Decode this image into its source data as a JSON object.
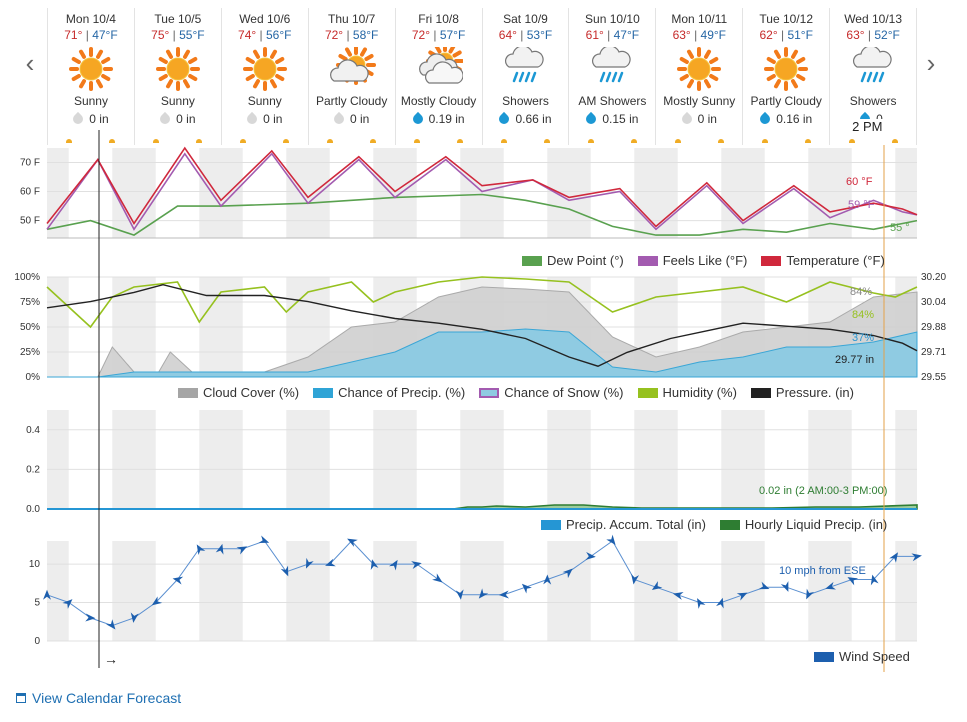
{
  "nav": {
    "prev_icon": "chevron-left-icon",
    "next_icon": "chevron-right-icon"
  },
  "days": [
    {
      "name": "Mon 10/4",
      "hi": "71°",
      "lo": "47°F",
      "icon": "sunny",
      "cond": "Sunny",
      "precip": "0 in",
      "wet": false
    },
    {
      "name": "Tue 10/5",
      "hi": "75°",
      "lo": "55°F",
      "icon": "sunny",
      "cond": "Sunny",
      "precip": "0 in",
      "wet": false
    },
    {
      "name": "Wed 10/6",
      "hi": "74°",
      "lo": "56°F",
      "icon": "sunny",
      "cond": "Sunny",
      "precip": "0 in",
      "wet": false
    },
    {
      "name": "Thu 10/7",
      "hi": "72°",
      "lo": "58°F",
      "icon": "partly-cloudy",
      "cond": "Partly Cloudy",
      "precip": "0 in",
      "wet": false
    },
    {
      "name": "Fri 10/8",
      "hi": "72°",
      "lo": "57°F",
      "icon": "mostly-cloudy",
      "cond": "Mostly Cloudy",
      "precip": "0.19 in",
      "wet": true
    },
    {
      "name": "Sat 10/9",
      "hi": "64°",
      "lo": "53°F",
      "icon": "showers",
      "cond": "Showers",
      "precip": "0.66 in",
      "wet": true
    },
    {
      "name": "Sun 10/10",
      "hi": "61°",
      "lo": "47°F",
      "icon": "showers",
      "cond": "AM Showers",
      "precip": "0.15 in",
      "wet": true
    },
    {
      "name": "Mon 10/11",
      "hi": "63°",
      "lo": "49°F",
      "icon": "sunny",
      "cond": "Mostly Sunny",
      "precip": "0 in",
      "wet": false
    },
    {
      "name": "Tue 10/12",
      "hi": "62°",
      "lo": "51°F",
      "icon": "sunny",
      "cond": "Partly Cloudy",
      "precip": "0.16 in",
      "wet": true
    },
    {
      "name": "Wed 10/13",
      "hi": "63°",
      "lo": "52°F",
      "icon": "showers",
      "cond": "Showers",
      "precip": "0.",
      "wet": true
    }
  ],
  "hover_time": "2 PM",
  "colors": {
    "temperature": "#d0283c",
    "feels_like": "#a35bb0",
    "dew_point": "#59a14f",
    "cloud": "#bdbdbd",
    "precip_chance": "#8fcbe2",
    "humidity": "#96c11f",
    "pressure": "#222222",
    "hourly_precip": "#2e7d32",
    "accum": "#2596d4",
    "wind": "#1d5fae",
    "hi": "#c62a2a",
    "lo": "#2566a5"
  },
  "chart_data": [
    {
      "type": "line",
      "title": "",
      "yticks": [
        "70 F",
        "60 F",
        "50 F"
      ],
      "ylim": [
        44,
        75
      ],
      "x_unit": "hours from Mon 10/4 00:00",
      "series": [
        {
          "name": "Dew Point (°)",
          "points": [
            [
              0,
              47
            ],
            [
              12,
              50
            ],
            [
              24,
              45
            ],
            [
              36,
              55
            ],
            [
              48,
              55
            ],
            [
              72,
              56
            ],
            [
              96,
              58
            ],
            [
              120,
              59
            ],
            [
              132,
              57
            ],
            [
              144,
              54
            ],
            [
              156,
              48
            ],
            [
              168,
              45
            ],
            [
              180,
              45
            ],
            [
              192,
              47
            ],
            [
              204,
              46
            ],
            [
              216,
              49
            ],
            [
              228,
              47
            ],
            [
              240,
              50
            ]
          ]
        },
        {
          "name": "Feels Like (°F)",
          "points": [
            [
              0,
              47
            ],
            [
              14,
              71
            ],
            [
              24,
              47
            ],
            [
              38,
              73
            ],
            [
              48,
              55
            ],
            [
              62,
              73
            ],
            [
              72,
              56
            ],
            [
              86,
              71
            ],
            [
              96,
              58
            ],
            [
              110,
              71
            ],
            [
              120,
              60
            ],
            [
              134,
              64
            ],
            [
              144,
              57
            ],
            [
              158,
              60
            ],
            [
              168,
              47
            ],
            [
              182,
              62
            ],
            [
              192,
              49
            ],
            [
              206,
              61
            ],
            [
              216,
              51
            ],
            [
              228,
              57
            ],
            [
              236,
              53
            ],
            [
              240,
              52
            ]
          ]
        },
        {
          "name": "Temperature (°F)",
          "points": [
            [
              0,
              49
            ],
            [
              14,
              71
            ],
            [
              24,
              49
            ],
            [
              38,
              75
            ],
            [
              48,
              57
            ],
            [
              62,
              74
            ],
            [
              72,
              58
            ],
            [
              86,
              72
            ],
            [
              96,
              60
            ],
            [
              110,
              72
            ],
            [
              120,
              62
            ],
            [
              134,
              64
            ],
            [
              144,
              58
            ],
            [
              158,
              61
            ],
            [
              168,
              48
            ],
            [
              182,
              63
            ],
            [
              192,
              50
            ],
            [
              206,
              62
            ],
            [
              216,
              53
            ],
            [
              228,
              56
            ],
            [
              236,
              54
            ],
            [
              240,
              52
            ]
          ]
        }
      ],
      "annotations": [
        "60 °F",
        "59 °F",
        "55 °"
      ]
    },
    {
      "type": "area",
      "yticks_left": [
        "100%",
        "75%",
        "50%",
        "25%",
        "0%"
      ],
      "yticks_right": [
        "30.20",
        "30.04",
        "29.88",
        "29.71",
        "29.55"
      ],
      "x_unit": "hours from Mon 10/4 00:00",
      "series": [
        {
          "name": "Cloud Cover (%)",
          "points": [
            [
              0,
              0
            ],
            [
              14,
              0
            ],
            [
              18,
              30
            ],
            [
              24,
              5
            ],
            [
              30,
              0
            ],
            [
              34,
              25
            ],
            [
              40,
              5
            ],
            [
              48,
              0
            ],
            [
              60,
              5
            ],
            [
              72,
              20
            ],
            [
              84,
              50
            ],
            [
              96,
              55
            ],
            [
              108,
              80
            ],
            [
              120,
              90
            ],
            [
              132,
              88
            ],
            [
              144,
              85
            ],
            [
              156,
              40
            ],
            [
              168,
              20
            ],
            [
              180,
              30
            ],
            [
              192,
              45
            ],
            [
              204,
              50
            ],
            [
              216,
              55
            ],
            [
              228,
              80
            ],
            [
              240,
              85
            ]
          ]
        },
        {
          "name": "Chance of Precip. (%)",
          "points": [
            [
              0,
              0
            ],
            [
              14,
              0
            ],
            [
              24,
              5
            ],
            [
              72,
              5
            ],
            [
              96,
              25
            ],
            [
              108,
              45
            ],
            [
              120,
              45
            ],
            [
              132,
              48
            ],
            [
              144,
              45
            ],
            [
              156,
              10
            ],
            [
              168,
              5
            ],
            [
              180,
              15
            ],
            [
              192,
              20
            ],
            [
              204,
              30
            ],
            [
              216,
              30
            ],
            [
              228,
              35
            ],
            [
              240,
              45
            ]
          ]
        },
        {
          "name": "Chance of Snow (%)",
          "points": [
            [
              0,
              0
            ],
            [
              240,
              0
            ]
          ]
        },
        {
          "name": "Humidity (%)",
          "points": [
            [
              0,
              90
            ],
            [
              12,
              50
            ],
            [
              18,
              80
            ],
            [
              24,
              90
            ],
            [
              36,
              95
            ],
            [
              42,
              55
            ],
            [
              48,
              85
            ],
            [
              60,
              90
            ],
            [
              66,
              65
            ],
            [
              72,
              85
            ],
            [
              84,
              95
            ],
            [
              90,
              75
            ],
            [
              96,
              85
            ],
            [
              108,
              95
            ],
            [
              120,
              100
            ],
            [
              132,
              98
            ],
            [
              144,
              95
            ],
            [
              156,
              65
            ],
            [
              168,
              80
            ],
            [
              180,
              85
            ],
            [
              192,
              90
            ],
            [
              204,
              75
            ],
            [
              216,
              95
            ],
            [
              228,
              84
            ],
            [
              234,
              80
            ],
            [
              240,
              90
            ]
          ]
        },
        {
          "name": "Pressure. (in)",
          "points": [
            [
              0,
              30.0
            ],
            [
              12,
              30.04
            ],
            [
              24,
              30.1
            ],
            [
              32,
              30.15
            ],
            [
              44,
              30.08
            ],
            [
              60,
              30.08
            ],
            [
              72,
              30.04
            ],
            [
              84,
              29.98
            ],
            [
              96,
              29.93
            ],
            [
              108,
              29.9
            ],
            [
              120,
              29.86
            ],
            [
              132,
              29.8
            ],
            [
              144,
              29.68
            ],
            [
              152,
              29.62
            ],
            [
              160,
              29.71
            ],
            [
              172,
              29.8
            ],
            [
              184,
              29.86
            ],
            [
              192,
              29.9
            ],
            [
              204,
              29.88
            ],
            [
              216,
              29.86
            ],
            [
              228,
              29.82
            ],
            [
              236,
              29.77
            ],
            [
              240,
              29.72
            ]
          ]
        }
      ],
      "annotations": [
        "84%",
        "84%",
        "37%",
        "29.77 in"
      ]
    },
    {
      "type": "area",
      "yticks": [
        "0.4",
        "0.2",
        "0.0"
      ],
      "ylim": [
        0,
        0.5
      ],
      "x_unit": "hours from Mon 10/4 00:00",
      "series": [
        {
          "name": "Precip. Accum. Total (in)",
          "points": [
            [
              0,
              0
            ],
            [
              240,
              0
            ]
          ]
        },
        {
          "name": "Hourly Liquid Precip. (in)",
          "points": [
            [
              0,
              0
            ],
            [
              112,
              0
            ],
            [
              116,
              0.01
            ],
            [
              120,
              0.01
            ],
            [
              124,
              0.015
            ],
            [
              132,
              0.01
            ],
            [
              140,
              0.02
            ],
            [
              148,
              0.02
            ],
            [
              156,
              0.01
            ],
            [
              164,
              0.005
            ],
            [
              200,
              0.005
            ],
            [
              212,
              0.01
            ],
            [
              224,
              0.01
            ],
            [
              240,
              0.02
            ]
          ]
        }
      ],
      "annotations": [
        "0.02 in (2 AM:00-3 PM:00)"
      ]
    },
    {
      "type": "line",
      "yticks": [
        "10",
        "5",
        "0"
      ],
      "ylim": [
        0,
        13
      ],
      "x_unit": "hours from Mon 10/4 00:00",
      "series": [
        {
          "name": "Wind Speed",
          "points": [
            [
              0,
              6
            ],
            [
              6,
              5
            ],
            [
              12,
              3
            ],
            [
              18,
              2
            ],
            [
              24,
              3
            ],
            [
              30,
              5
            ],
            [
              36,
              8
            ],
            [
              42,
              12
            ],
            [
              48,
              12
            ],
            [
              54,
              12
            ],
            [
              60,
              13
            ],
            [
              66,
              9
            ],
            [
              72,
              10
            ],
            [
              78,
              10
            ],
            [
              84,
              13
            ],
            [
              90,
              10
            ],
            [
              96,
              10
            ],
            [
              102,
              10
            ],
            [
              108,
              8
            ],
            [
              114,
              6
            ],
            [
              120,
              6
            ],
            [
              126,
              6
            ],
            [
              132,
              7
            ],
            [
              138,
              8
            ],
            [
              144,
              9
            ],
            [
              150,
              11
            ],
            [
              156,
              13
            ],
            [
              162,
              8
            ],
            [
              168,
              7
            ],
            [
              174,
              6
            ],
            [
              180,
              5
            ],
            [
              186,
              5
            ],
            [
              192,
              6
            ],
            [
              198,
              7
            ],
            [
              204,
              7
            ],
            [
              210,
              6
            ],
            [
              216,
              7
            ],
            [
              222,
              8
            ],
            [
              228,
              8
            ],
            [
              234,
              11
            ],
            [
              240,
              11
            ]
          ]
        }
      ],
      "annotations": [
        "10 mph from ESE"
      ]
    }
  ],
  "legends": {
    "temp": [
      "Dew Point (°)",
      "Feels Like (°F)",
      "Temperature (°F)"
    ],
    "cloud": [
      "Cloud Cover (%)",
      "Chance of Precip. (%)",
      "Chance of Snow (%)",
      "Humidity (%)",
      "Pressure. (in)"
    ],
    "precip": [
      "Precip. Accum. Total (in)",
      "Hourly Liquid Precip. (in)"
    ],
    "wind": [
      "Wind Speed"
    ]
  },
  "footer": {
    "link": "View Calendar Forecast",
    "icon": "calendar-icon"
  },
  "wind_arrow": "→"
}
